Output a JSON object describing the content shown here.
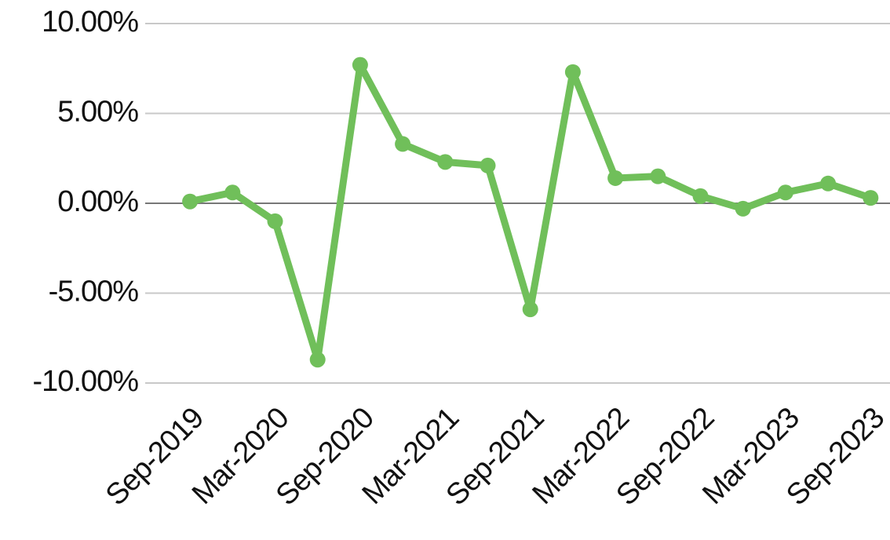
{
  "chart_data": {
    "type": "line",
    "categories": [
      "Sep-2019",
      null,
      "Mar-2020",
      null,
      "Sep-2020",
      null,
      "Mar-2021",
      null,
      "Sep-2021",
      null,
      "Mar-2022",
      null,
      "Sep-2022",
      null,
      "Mar-2023",
      null,
      "Sep-2023"
    ],
    "series": [
      {
        "color": "#70bf5a",
        "values": [
          0.1,
          0.6,
          -1.0,
          -8.7,
          7.7,
          3.3,
          2.3,
          2.1,
          -5.9,
          7.3,
          1.4,
          1.5,
          0.4,
          -0.3,
          0.6,
          1.1,
          0.3
        ]
      }
    ],
    "ylim": [
      -10,
      10
    ],
    "yticks": [
      {
        "value": -10,
        "label": "-10.00%"
      },
      {
        "value": -5,
        "label": "-5.00%"
      },
      {
        "value": 0,
        "label": "0.00%"
      },
      {
        "value": 5,
        "label": "5.00%"
      },
      {
        "value": 10,
        "label": "10.00%"
      }
    ],
    "grid": true
  }
}
